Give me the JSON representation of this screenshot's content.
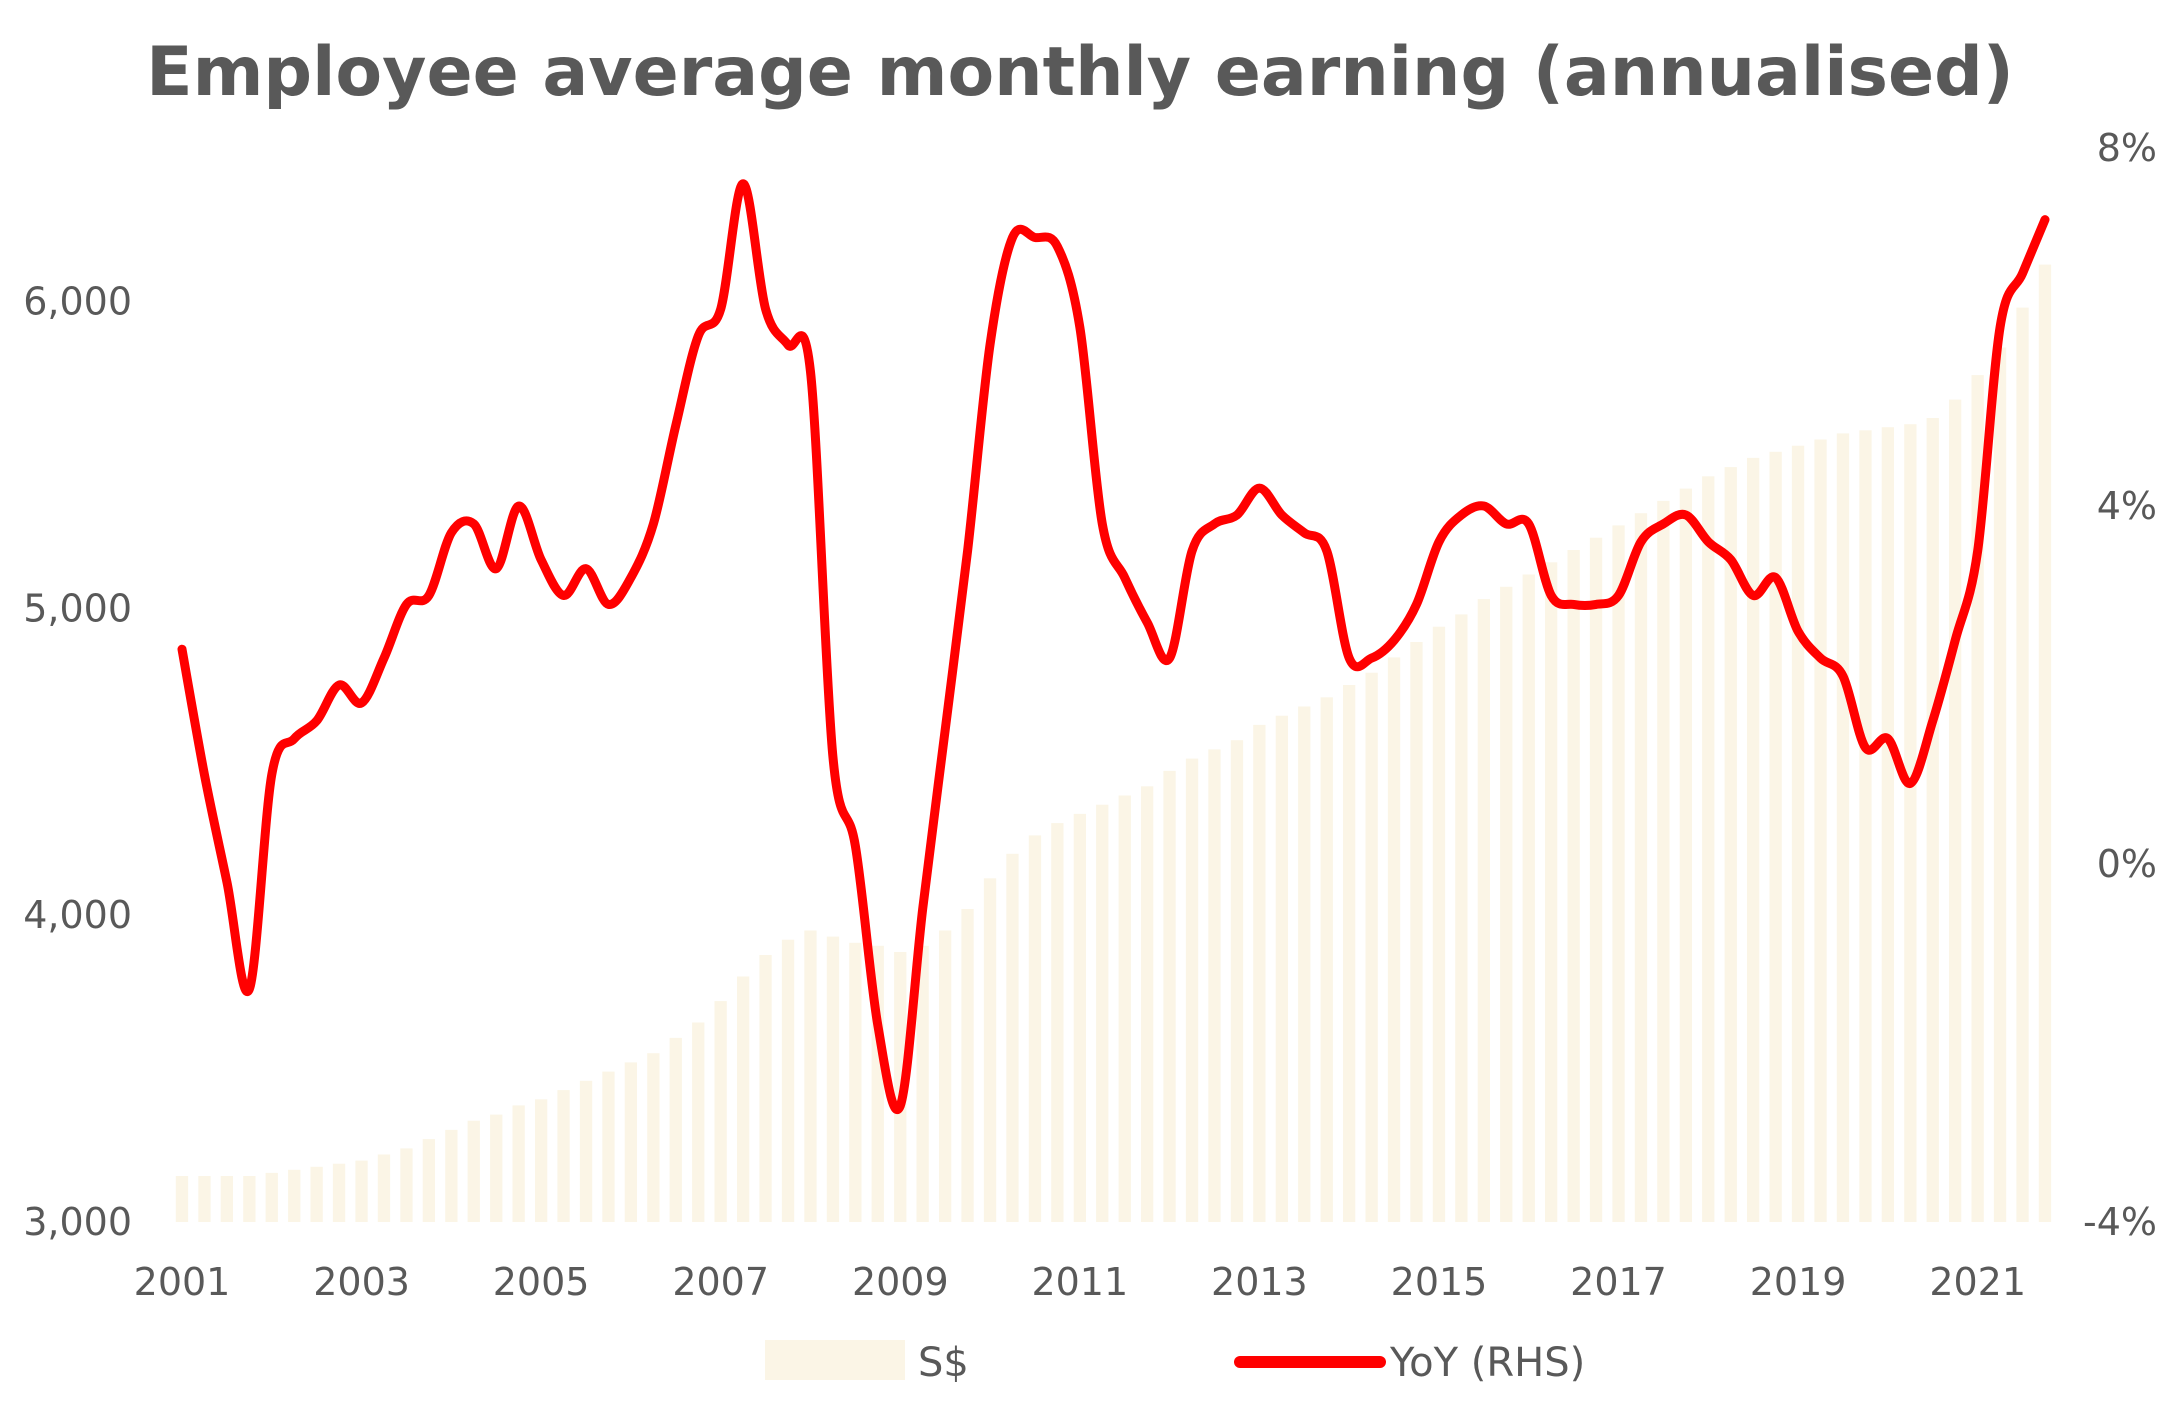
{
  "chart_data": {
    "type": "bar+line",
    "title": "Employee average monthly earning (annualised)",
    "xlabel": "",
    "ylabel": "",
    "x_tick_labels": [
      "2001",
      "2003",
      "2005",
      "2007",
      "2009",
      "2011",
      "2013",
      "2015",
      "2017",
      "2019",
      "2021"
    ],
    "y_left": {
      "ticks": [
        3000,
        4000,
        5000,
        6000
      ],
      "tick_labels": [
        "3,000",
        "4,000",
        "5,000",
        "6,000"
      ],
      "lim": [
        3000,
        6500
      ]
    },
    "y_right": {
      "ticks": [
        -4,
        0,
        4,
        8
      ],
      "tick_labels": [
        "-4%",
        "0%",
        "4%",
        "8%"
      ],
      "lim": [
        -4,
        8
      ],
      "unit": "%"
    },
    "legend_position": "bottom",
    "x_range": [
      2001.0,
      2021.75
    ],
    "series": [
      {
        "name": "S$",
        "type": "bar",
        "axis": "left",
        "color": "#fbf5e6",
        "x": [
          2001.0,
          2001.25,
          2001.5,
          2001.75,
          2002.0,
          2002.25,
          2002.5,
          2002.75,
          2003.0,
          2003.25,
          2003.5,
          2003.75,
          2004.0,
          2004.25,
          2004.5,
          2004.75,
          2005.0,
          2005.25,
          2005.5,
          2005.75,
          2006.0,
          2006.25,
          2006.5,
          2006.75,
          2007.0,
          2007.25,
          2007.5,
          2007.75,
          2008.0,
          2008.25,
          2008.5,
          2008.75,
          2009.0,
          2009.25,
          2009.5,
          2009.75,
          2010.0,
          2010.25,
          2010.5,
          2010.75,
          2011.0,
          2011.25,
          2011.5,
          2011.75,
          2012.0,
          2012.25,
          2012.5,
          2012.75,
          2013.0,
          2013.25,
          2013.5,
          2013.75,
          2014.0,
          2014.25,
          2014.5,
          2014.75,
          2015.0,
          2015.25,
          2015.5,
          2015.75,
          2016.0,
          2016.25,
          2016.5,
          2016.75,
          2017.0,
          2017.25,
          2017.5,
          2017.75,
          2018.0,
          2018.25,
          2018.5,
          2018.75,
          2019.0,
          2019.25,
          2019.5,
          2019.75,
          2020.0,
          2020.25,
          2020.5,
          2020.75,
          2021.0,
          2021.25,
          2021.5,
          2021.75
        ],
        "values": [
          3150,
          3150,
          3150,
          3150,
          3160,
          3170,
          3180,
          3190,
          3200,
          3220,
          3240,
          3270,
          3300,
          3330,
          3350,
          3380,
          3400,
          3430,
          3460,
          3490,
          3520,
          3550,
          3600,
          3650,
          3720,
          3800,
          3870,
          3920,
          3950,
          3930,
          3910,
          3900,
          3880,
          3900,
          3950,
          4020,
          4120,
          4200,
          4260,
          4300,
          4330,
          4360,
          4390,
          4420,
          4470,
          4510,
          4540,
          4570,
          4620,
          4650,
          4680,
          4710,
          4750,
          4790,
          4840,
          4890,
          4940,
          4980,
          5030,
          5070,
          5110,
          5150,
          5190,
          5230,
          5270,
          5310,
          5350,
          5390,
          5430,
          5460,
          5490,
          5510,
          5530,
          5550,
          5570,
          5580,
          5590,
          5600,
          5620,
          5680,
          5760,
          5850,
          5980,
          6120
        ]
      },
      {
        "name": "YoY (RHS)",
        "type": "line",
        "axis": "right",
        "color": "#ff0000",
        "x": [
          2001.0,
          2001.25,
          2001.5,
          2001.75,
          2002.0,
          2002.25,
          2002.5,
          2002.75,
          2003.0,
          2003.25,
          2003.5,
          2003.75,
          2004.0,
          2004.25,
          2004.5,
          2004.75,
          2005.0,
          2005.25,
          2005.5,
          2005.75,
          2006.0,
          2006.25,
          2006.5,
          2006.75,
          2007.0,
          2007.25,
          2007.5,
          2007.75,
          2008.0,
          2008.25,
          2008.5,
          2008.75,
          2009.0,
          2009.25,
          2009.5,
          2009.75,
          2010.0,
          2010.25,
          2010.5,
          2010.75,
          2011.0,
          2011.25,
          2011.5,
          2011.75,
          2012.0,
          2012.25,
          2012.5,
          2012.75,
          2013.0,
          2013.25,
          2013.5,
          2013.75,
          2014.0,
          2014.25,
          2014.5,
          2014.75,
          2015.0,
          2015.25,
          2015.5,
          2015.75,
          2016.0,
          2016.25,
          2016.5,
          2016.75,
          2017.0,
          2017.25,
          2017.5,
          2017.75,
          2018.0,
          2018.25,
          2018.5,
          2018.75,
          2019.0,
          2019.25,
          2019.5,
          2019.75,
          2020.0,
          2020.25,
          2020.5,
          2020.75,
          2021.0,
          2021.25,
          2021.5,
          2021.75
        ],
        "values": [
          2.4,
          1.0,
          -0.2,
          -1.4,
          1.0,
          1.4,
          1.6,
          2.0,
          1.8,
          2.3,
          2.9,
          3.0,
          3.7,
          3.8,
          3.3,
          4.0,
          3.4,
          3.0,
          3.3,
          2.9,
          3.2,
          3.8,
          4.9,
          5.9,
          6.2,
          7.6,
          6.2,
          5.8,
          5.5,
          1.2,
          0.2,
          -1.8,
          -2.7,
          -0.5,
          1.5,
          3.5,
          5.8,
          7.0,
          7.0,
          6.9,
          6.0,
          3.8,
          3.2,
          2.7,
          2.3,
          3.5,
          3.8,
          3.9,
          4.2,
          3.9,
          3.7,
          3.5,
          2.3,
          2.3,
          2.5,
          2.9,
          3.6,
          3.9,
          4.0,
          3.8,
          3.8,
          3.0,
          2.9,
          2.9,
          3.0,
          3.6,
          3.8,
          3.9,
          3.6,
          3.4,
          3.0,
          3.2,
          2.6,
          2.3,
          2.1,
          1.3,
          1.4,
          0.9,
          1.6,
          2.5,
          3.5,
          6.0,
          6.6,
          7.2
        ]
      }
    ]
  }
}
